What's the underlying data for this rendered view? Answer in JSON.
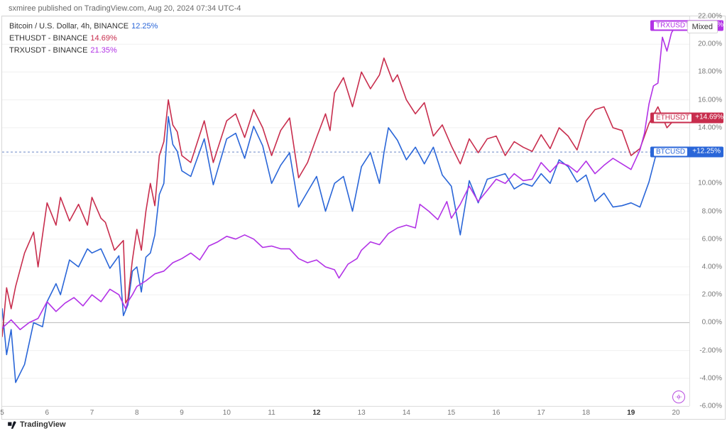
{
  "attribution": "sxmiree published on TradingView.com, Aug 20, 2024 07:34 UTC-4",
  "footer_brand": "TradingView",
  "mode_flag": "Mixed",
  "legend": {
    "main": {
      "label": "Bitcoin / U.S. Dollar, 4h, BINANCE",
      "value": "12.25%",
      "color": "#2a66d8"
    },
    "lines": [
      {
        "label": "ETHUSDT - BINANCE",
        "value": "14.69%",
        "color": "#c82d4d"
      },
      {
        "label": "TRXUSDT - BINANCE",
        "value": "21.35%",
        "color": "#b232e6"
      }
    ]
  },
  "y_axis": {
    "min": -6.0,
    "max": 22.0,
    "step": 2.0,
    "suffix": "%",
    "grid_color": "#f0f0f0",
    "zero_color": "#b8b8b8",
    "label_color": "#777777"
  },
  "x_axis": {
    "min": 5.0,
    "max": 20.3,
    "ticks": [
      {
        "v": 5,
        "label": "5"
      },
      {
        "v": 6,
        "label": "6"
      },
      {
        "v": 7,
        "label": "7"
      },
      {
        "v": 8,
        "label": "8"
      },
      {
        "v": 9,
        "label": "9"
      },
      {
        "v": 10,
        "label": "10"
      },
      {
        "v": 11,
        "label": "11"
      },
      {
        "v": 12,
        "label": "12",
        "bold": true
      },
      {
        "v": 13,
        "label": "13"
      },
      {
        "v": 14,
        "label": "14"
      },
      {
        "v": 15,
        "label": "15"
      },
      {
        "v": 16,
        "label": "16"
      },
      {
        "v": 17,
        "label": "17"
      },
      {
        "v": 18,
        "label": "18"
      },
      {
        "v": 19,
        "label": "19",
        "bold": true
      },
      {
        "v": 20,
        "label": "20"
      }
    ]
  },
  "last_price_tags": [
    {
      "pair": "TRXUSDT",
      "value": "+21.35%",
      "y": 21.35,
      "bg": "#b232e6",
      "chip_text": "#b232e6"
    },
    {
      "pair": "ETHUSDT",
      "value": "+14.69%",
      "y": 14.69,
      "bg": "#c82d4d",
      "chip_text": "#c82d4d"
    },
    {
      "pair": "BTCUSD",
      "value": "+12.25%",
      "y": 12.25,
      "bg": "#2a66d8",
      "chip_text": "#2a66d8"
    }
  ],
  "current_line": {
    "y": 12.25,
    "color": "#6a88c8",
    "dash": "3 3"
  },
  "styling": {
    "line_width": 1.6,
    "background": "#ffffff",
    "border": "#d7d7d7",
    "font_size_axis": 10
  },
  "series": [
    {
      "name": "BTCUSD",
      "color": "#2a66d8",
      "points": [
        [
          5.0,
          1.0
        ],
        [
          5.1,
          -2.3
        ],
        [
          5.2,
          -0.5
        ],
        [
          5.3,
          -4.3
        ],
        [
          5.5,
          -3.0
        ],
        [
          5.7,
          0.0
        ],
        [
          5.9,
          -0.3
        ],
        [
          6.0,
          1.5
        ],
        [
          6.2,
          2.8
        ],
        [
          6.3,
          2.0
        ],
        [
          6.5,
          4.5
        ],
        [
          6.7,
          4.0
        ],
        [
          6.9,
          5.3
        ],
        [
          7.0,
          5.0
        ],
        [
          7.2,
          5.3
        ],
        [
          7.4,
          3.9
        ],
        [
          7.6,
          4.8
        ],
        [
          7.7,
          0.5
        ],
        [
          7.8,
          1.3
        ],
        [
          7.9,
          3.7
        ],
        [
          8.0,
          4.0
        ],
        [
          8.1,
          2.2
        ],
        [
          8.2,
          4.7
        ],
        [
          8.3,
          5.0
        ],
        [
          8.4,
          6.3
        ],
        [
          8.5,
          9.2
        ],
        [
          8.6,
          10.0
        ],
        [
          8.7,
          14.8
        ],
        [
          8.8,
          12.8
        ],
        [
          8.9,
          12.3
        ],
        [
          9.0,
          10.9
        ],
        [
          9.2,
          10.5
        ],
        [
          9.5,
          13.2
        ],
        [
          9.7,
          9.9
        ],
        [
          9.8,
          11.0
        ],
        [
          10.0,
          13.2
        ],
        [
          10.2,
          13.6
        ],
        [
          10.4,
          11.8
        ],
        [
          10.6,
          14.1
        ],
        [
          10.8,
          12.7
        ],
        [
          11.0,
          10.0
        ],
        [
          11.2,
          11.3
        ],
        [
          11.4,
          12.2
        ],
        [
          11.6,
          8.3
        ],
        [
          11.8,
          9.4
        ],
        [
          12.0,
          10.5
        ],
        [
          12.2,
          8.0
        ],
        [
          12.4,
          10.0
        ],
        [
          12.6,
          10.5
        ],
        [
          12.8,
          8.0
        ],
        [
          13.0,
          11.2
        ],
        [
          13.2,
          12.2
        ],
        [
          13.4,
          10.0
        ],
        [
          13.5,
          12.2
        ],
        [
          13.6,
          14.0
        ],
        [
          13.8,
          13.1
        ],
        [
          14.0,
          11.7
        ],
        [
          14.2,
          12.6
        ],
        [
          14.4,
          11.4
        ],
        [
          14.6,
          12.6
        ],
        [
          14.8,
          10.6
        ],
        [
          15.0,
          9.8
        ],
        [
          15.2,
          6.3
        ],
        [
          15.4,
          10.2
        ],
        [
          15.6,
          8.6
        ],
        [
          15.8,
          10.3
        ],
        [
          16.0,
          10.5
        ],
        [
          16.2,
          10.7
        ],
        [
          16.4,
          9.6
        ],
        [
          16.6,
          10.0
        ],
        [
          16.8,
          9.8
        ],
        [
          17.0,
          10.7
        ],
        [
          17.2,
          10.0
        ],
        [
          17.4,
          11.7
        ],
        [
          17.6,
          11.2
        ],
        [
          17.8,
          10.1
        ],
        [
          18.0,
          10.6
        ],
        [
          18.2,
          8.7
        ],
        [
          18.4,
          9.3
        ],
        [
          18.6,
          8.3
        ],
        [
          18.8,
          8.4
        ],
        [
          19.0,
          8.6
        ],
        [
          19.2,
          8.3
        ],
        [
          19.4,
          10.1
        ],
        [
          19.6,
          12.6
        ],
        [
          19.8,
          12.0
        ],
        [
          20.0,
          12.25
        ]
      ]
    },
    {
      "name": "ETHUSDT",
      "color": "#c82d4d",
      "points": [
        [
          5.0,
          -1.0
        ],
        [
          5.1,
          2.5
        ],
        [
          5.2,
          1.0
        ],
        [
          5.3,
          2.6
        ],
        [
          5.5,
          5.0
        ],
        [
          5.7,
          6.5
        ],
        [
          5.8,
          4.0
        ],
        [
          6.0,
          8.6
        ],
        [
          6.2,
          7.0
        ],
        [
          6.3,
          9.0
        ],
        [
          6.5,
          7.3
        ],
        [
          6.7,
          8.5
        ],
        [
          6.9,
          7.0
        ],
        [
          7.0,
          9.0
        ],
        [
          7.2,
          7.5
        ],
        [
          7.3,
          7.2
        ],
        [
          7.5,
          5.2
        ],
        [
          7.7,
          5.9
        ],
        [
          7.75,
          1.4
        ],
        [
          7.8,
          1.7
        ],
        [
          7.9,
          4.5
        ],
        [
          8.0,
          6.7
        ],
        [
          8.1,
          5.2
        ],
        [
          8.2,
          8.0
        ],
        [
          8.3,
          10.0
        ],
        [
          8.4,
          8.4
        ],
        [
          8.5,
          12.0
        ],
        [
          8.6,
          13.0
        ],
        [
          8.7,
          16.0
        ],
        [
          8.8,
          14.2
        ],
        [
          8.9,
          13.7
        ],
        [
          9.0,
          12.0
        ],
        [
          9.2,
          11.5
        ],
        [
          9.5,
          14.5
        ],
        [
          9.7,
          11.5
        ],
        [
          9.8,
          12.5
        ],
        [
          10.0,
          14.5
        ],
        [
          10.2,
          15.0
        ],
        [
          10.4,
          13.3
        ],
        [
          10.6,
          15.3
        ],
        [
          10.8,
          14.0
        ],
        [
          11.0,
          12.0
        ],
        [
          11.2,
          13.8
        ],
        [
          11.4,
          14.7
        ],
        [
          11.6,
          10.4
        ],
        [
          11.8,
          11.5
        ],
        [
          12.0,
          13.3
        ],
        [
          12.2,
          15.0
        ],
        [
          12.3,
          13.8
        ],
        [
          12.4,
          16.5
        ],
        [
          12.6,
          17.6
        ],
        [
          12.8,
          15.5
        ],
        [
          13.0,
          18.0
        ],
        [
          13.2,
          16.8
        ],
        [
          13.4,
          17.8
        ],
        [
          13.5,
          19.0
        ],
        [
          13.7,
          17.3
        ],
        [
          13.8,
          17.8
        ],
        [
          14.0,
          16.0
        ],
        [
          14.2,
          15.0
        ],
        [
          14.4,
          15.8
        ],
        [
          14.6,
          13.4
        ],
        [
          14.8,
          14.2
        ],
        [
          15.0,
          12.7
        ],
        [
          15.2,
          11.4
        ],
        [
          15.4,
          13.2
        ],
        [
          15.6,
          12.2
        ],
        [
          15.8,
          13.2
        ],
        [
          16.0,
          13.4
        ],
        [
          16.2,
          12.0
        ],
        [
          16.4,
          13.0
        ],
        [
          16.6,
          12.6
        ],
        [
          16.8,
          12.3
        ],
        [
          17.0,
          13.5
        ],
        [
          17.2,
          12.5
        ],
        [
          17.4,
          14.0
        ],
        [
          17.6,
          13.4
        ],
        [
          17.8,
          12.4
        ],
        [
          18.0,
          14.5
        ],
        [
          18.2,
          15.3
        ],
        [
          18.4,
          15.5
        ],
        [
          18.6,
          14.0
        ],
        [
          18.8,
          13.8
        ],
        [
          19.0,
          12.0
        ],
        [
          19.2,
          12.5
        ],
        [
          19.4,
          14.3
        ],
        [
          19.6,
          15.5
        ],
        [
          19.8,
          14.0
        ],
        [
          20.0,
          14.69
        ]
      ]
    },
    {
      "name": "TRXUSDT",
      "color": "#b232e6",
      "points": [
        [
          5.0,
          -0.4
        ],
        [
          5.2,
          0.2
        ],
        [
          5.4,
          -0.5
        ],
        [
          5.6,
          0.0
        ],
        [
          5.8,
          0.3
        ],
        [
          6.0,
          1.5
        ],
        [
          6.2,
          0.8
        ],
        [
          6.4,
          1.4
        ],
        [
          6.6,
          1.8
        ],
        [
          6.8,
          1.2
        ],
        [
          7.0,
          2.0
        ],
        [
          7.2,
          1.5
        ],
        [
          7.4,
          2.4
        ],
        [
          7.6,
          2.0
        ],
        [
          7.75,
          1.0
        ],
        [
          7.8,
          1.5
        ],
        [
          7.9,
          2.0
        ],
        [
          8.0,
          2.6
        ],
        [
          8.2,
          3.0
        ],
        [
          8.4,
          3.5
        ],
        [
          8.6,
          3.7
        ],
        [
          8.8,
          4.3
        ],
        [
          9.0,
          4.6
        ],
        [
          9.2,
          5.0
        ],
        [
          9.4,
          4.5
        ],
        [
          9.6,
          5.5
        ],
        [
          9.8,
          5.8
        ],
        [
          10.0,
          6.2
        ],
        [
          10.2,
          6.0
        ],
        [
          10.4,
          6.3
        ],
        [
          10.6,
          6.0
        ],
        [
          10.8,
          5.4
        ],
        [
          11.0,
          5.5
        ],
        [
          11.2,
          5.3
        ],
        [
          11.4,
          5.3
        ],
        [
          11.6,
          4.6
        ],
        [
          11.8,
          4.3
        ],
        [
          12.0,
          4.5
        ],
        [
          12.2,
          4.0
        ],
        [
          12.4,
          3.8
        ],
        [
          12.5,
          3.2
        ],
        [
          12.7,
          4.2
        ],
        [
          12.9,
          4.6
        ],
        [
          13.0,
          5.2
        ],
        [
          13.2,
          5.8
        ],
        [
          13.4,
          5.6
        ],
        [
          13.6,
          6.4
        ],
        [
          13.8,
          6.8
        ],
        [
          14.0,
          7.0
        ],
        [
          14.2,
          6.8
        ],
        [
          14.3,
          8.5
        ],
        [
          14.5,
          8.0
        ],
        [
          14.7,
          7.4
        ],
        [
          14.9,
          8.7
        ],
        [
          15.0,
          7.5
        ],
        [
          15.2,
          8.5
        ],
        [
          15.4,
          9.8
        ],
        [
          15.6,
          8.7
        ],
        [
          15.8,
          9.5
        ],
        [
          16.0,
          10.3
        ],
        [
          16.2,
          10.0
        ],
        [
          16.4,
          10.7
        ],
        [
          16.6,
          10.2
        ],
        [
          16.8,
          10.3
        ],
        [
          17.0,
          11.5
        ],
        [
          17.2,
          10.8
        ],
        [
          17.4,
          11.5
        ],
        [
          17.6,
          11.3
        ],
        [
          17.8,
          10.8
        ],
        [
          18.0,
          11.6
        ],
        [
          18.2,
          10.7
        ],
        [
          18.4,
          11.3
        ],
        [
          18.6,
          11.8
        ],
        [
          18.8,
          11.4
        ],
        [
          19.0,
          11.0
        ],
        [
          19.2,
          12.4
        ],
        [
          19.3,
          13.6
        ],
        [
          19.4,
          15.7
        ],
        [
          19.5,
          17.0
        ],
        [
          19.6,
          17.2
        ],
        [
          19.7,
          20.5
        ],
        [
          19.8,
          19.5
        ],
        [
          19.9,
          20.8
        ],
        [
          20.0,
          21.35
        ]
      ]
    }
  ]
}
